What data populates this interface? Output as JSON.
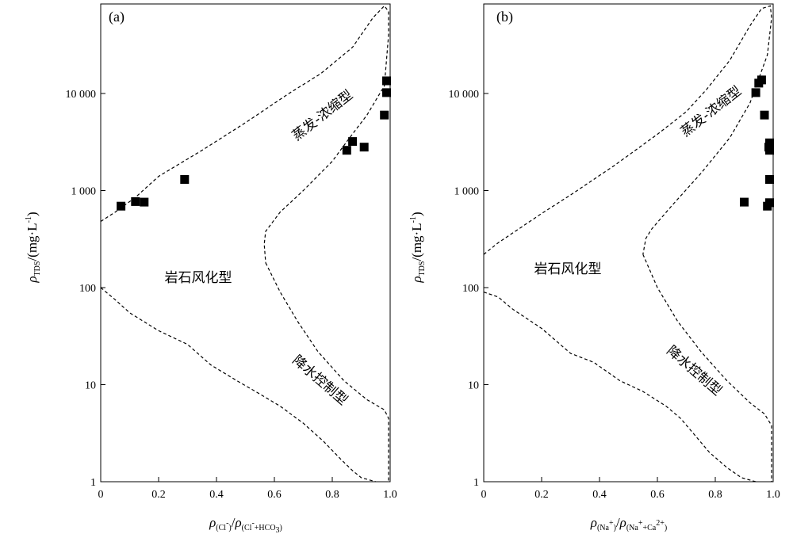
{
  "chart_data": [
    {
      "type": "scatter",
      "panel_label": "(a)",
      "x_range": [
        0,
        1.0
      ],
      "y_scale": "log",
      "y_range": [
        1,
        80000
      ],
      "x_ticks": [
        0,
        0.2,
        0.4,
        0.6,
        0.8,
        1.0
      ],
      "x_tick_labels": [
        "0",
        "0.2",
        "0.4",
        "0.6",
        "0.8",
        "1.0"
      ],
      "y_ticks": [
        1,
        10,
        100,
        1000,
        10000
      ],
      "y_tick_labels": [
        "1",
        "10",
        "100",
        "1 000",
        "10 000"
      ],
      "xlabel": "ρ(Cl⁻)/ρ(Cl⁻+HCO₃)",
      "ylabel": "ρTDS/(mg·L⁻¹)",
      "region_labels": {
        "evaporation": "蒸发-浓缩型",
        "rock": "岩石风化型",
        "precipitation": "降水控制型"
      },
      "grid": false,
      "points": [
        {
          "x": 0.07,
          "y": 690
        },
        {
          "x": 0.12,
          "y": 770
        },
        {
          "x": 0.15,
          "y": 760
        },
        {
          "x": 0.29,
          "y": 1300
        },
        {
          "x": 0.85,
          "y": 2600
        },
        {
          "x": 0.87,
          "y": 3200
        },
        {
          "x": 0.91,
          "y": 2800
        },
        {
          "x": 0.98,
          "y": 6000
        },
        {
          "x": 0.995,
          "y": 10200
        },
        {
          "x": 1.0,
          "y": 13500
        }
      ],
      "upper_boundary": [
        [
          0.0,
          480
        ],
        [
          0.05,
          600
        ],
        [
          0.12,
          850
        ],
        [
          0.2,
          1400
        ],
        [
          0.35,
          2600
        ],
        [
          0.5,
          5000
        ],
        [
          0.65,
          10000
        ],
        [
          0.76,
          16000
        ],
        [
          0.87,
          30000
        ],
        [
          0.94,
          60000
        ],
        [
          0.98,
          80000
        ],
        [
          1.0,
          70000
        ],
        [
          1.0,
          40000
        ],
        [
          0.98,
          12000
        ],
        [
          0.92,
          6000
        ],
        [
          0.86,
          3500
        ],
        [
          0.8,
          2000
        ],
        [
          0.7,
          1000
        ],
        [
          0.62,
          600
        ],
        [
          0.57,
          380
        ],
        [
          0.565,
          280
        ],
        [
          0.57,
          180
        ]
      ],
      "lower_boundary": [
        [
          0.0,
          100
        ],
        [
          0.05,
          75
        ],
        [
          0.1,
          55
        ],
        [
          0.2,
          36
        ],
        [
          0.3,
          26
        ],
        [
          0.38,
          16
        ],
        [
          0.47,
          11
        ],
        [
          0.55,
          8
        ],
        [
          0.62,
          6
        ],
        [
          0.7,
          4
        ],
        [
          0.77,
          2.6
        ],
        [
          0.83,
          1.7
        ],
        [
          0.87,
          1.3
        ],
        [
          0.9,
          1.1
        ],
        [
          0.95,
          1.0
        ]
      ],
      "right_boundary": [
        [
          0.57,
          180
        ],
        [
          0.62,
          90
        ],
        [
          0.68,
          45
        ],
        [
          0.75,
          22
        ],
        [
          0.84,
          11
        ],
        [
          0.92,
          7
        ],
        [
          0.98,
          5.5
        ],
        [
          1.0,
          4.5
        ],
        [
          1.0,
          1.0
        ]
      ]
    },
    {
      "type": "scatter",
      "panel_label": "(b)",
      "x_range": [
        0,
        1.0
      ],
      "y_scale": "log",
      "y_range": [
        1,
        80000
      ],
      "x_ticks": [
        0,
        0.2,
        0.4,
        0.6,
        0.8,
        1.0
      ],
      "x_tick_labels": [
        "0",
        "0.2",
        "0.4",
        "0.6",
        "0.8",
        "1.0"
      ],
      "y_ticks": [
        1,
        10,
        100,
        1000,
        10000
      ],
      "y_tick_labels": [
        "1",
        "10",
        "100",
        "1 000",
        "10 000"
      ],
      "xlabel": "ρ(Na⁺)/ρ(Na⁺+Ca²⁺)",
      "ylabel": "ρTDS/(mg·L⁻¹)",
      "region_labels": {
        "evaporation": "蒸发-浓缩型",
        "rock": "岩石风化型",
        "precipitation": "降水控制型"
      },
      "grid": false,
      "points": [
        {
          "x": 0.9,
          "y": 760
        },
        {
          "x": 0.94,
          "y": 10200
        },
        {
          "x": 0.95,
          "y": 12800
        },
        {
          "x": 0.96,
          "y": 13800
        },
        {
          "x": 0.97,
          "y": 6000
        },
        {
          "x": 0.985,
          "y": 2800
        },
        {
          "x": 0.99,
          "y": 3100
        },
        {
          "x": 0.99,
          "y": 2600
        },
        {
          "x": 0.995,
          "y": 1300
        },
        {
          "x": 0.995,
          "y": 750
        },
        {
          "x": 0.98,
          "y": 690
        }
      ],
      "upper_boundary": [
        [
          0.0,
          220
        ],
        [
          0.05,
          290
        ],
        [
          0.12,
          400
        ],
        [
          0.2,
          580
        ],
        [
          0.3,
          900
        ],
        [
          0.45,
          1800
        ],
        [
          0.6,
          3800
        ],
        [
          0.7,
          6500
        ],
        [
          0.77,
          11000
        ],
        [
          0.85,
          22000
        ],
        [
          0.92,
          50000
        ],
        [
          0.96,
          75000
        ],
        [
          0.99,
          80000
        ],
        [
          1.0,
          60000
        ],
        [
          0.98,
          25000
        ],
        [
          0.92,
          8000
        ],
        [
          0.85,
          3500
        ],
        [
          0.75,
          1500
        ],
        [
          0.65,
          700
        ],
        [
          0.58,
          400
        ],
        [
          0.56,
          320
        ],
        [
          0.55,
          220
        ]
      ],
      "lower_boundary": [
        [
          0.0,
          90
        ],
        [
          0.05,
          80
        ],
        [
          0.1,
          60
        ],
        [
          0.2,
          38
        ],
        [
          0.3,
          21
        ],
        [
          0.38,
          17
        ],
        [
          0.47,
          11
        ],
        [
          0.55,
          8.5
        ],
        [
          0.63,
          6
        ],
        [
          0.68,
          4.5
        ],
        [
          0.73,
          3
        ],
        [
          0.78,
          2
        ],
        [
          0.84,
          1.4
        ],
        [
          0.89,
          1.1
        ],
        [
          0.94,
          1.0
        ]
      ],
      "right_boundary": [
        [
          0.55,
          220
        ],
        [
          0.6,
          100
        ],
        [
          0.67,
          45
        ],
        [
          0.75,
          22
        ],
        [
          0.84,
          11
        ],
        [
          0.92,
          6.5
        ],
        [
          0.97,
          5
        ],
        [
          1.0,
          3.8
        ],
        [
          1.0,
          1.0
        ]
      ]
    }
  ]
}
